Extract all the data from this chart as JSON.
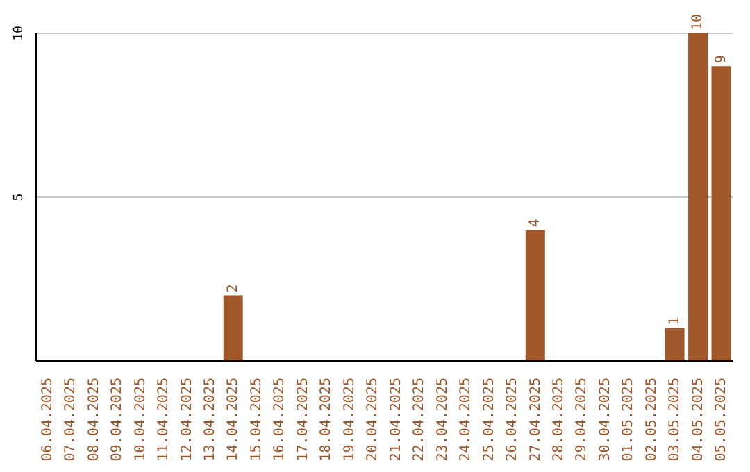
{
  "chart_data": {
    "type": "bar",
    "categories": [
      "06.04.2025",
      "07.04.2025",
      "08.04.2025",
      "09.04.2025",
      "10.04.2025",
      "11.04.2025",
      "12.04.2025",
      "13.04.2025",
      "14.04.2025",
      "15.04.2025",
      "16.04.2025",
      "17.04.2025",
      "18.04.2025",
      "19.04.2025",
      "20.04.2025",
      "21.04.2025",
      "22.04.2025",
      "23.04.2025",
      "24.04.2025",
      "25.04.2025",
      "26.04.2025",
      "27.04.2025",
      "28.04.2025",
      "29.04.2025",
      "30.04.2025",
      "01.05.2025",
      "02.05.2025",
      "03.05.2025",
      "04.05.2025",
      "05.05.2025"
    ],
    "values": [
      0,
      0,
      0,
      0,
      0,
      0,
      0,
      0,
      2,
      0,
      0,
      0,
      0,
      0,
      0,
      0,
      0,
      0,
      0,
      0,
      0,
      4,
      0,
      0,
      0,
      0,
      0,
      1,
      10,
      9
    ],
    "color": "#a0582a",
    "value_labels": [
      null,
      null,
      null,
      null,
      null,
      null,
      null,
      null,
      "2",
      null,
      null,
      null,
      null,
      null,
      null,
      null,
      null,
      null,
      null,
      null,
      null,
      "4",
      null,
      null,
      null,
      null,
      null,
      "1",
      "10",
      "9"
    ],
    "ylim": [
      0,
      10
    ],
    "yticks": [
      5,
      10
    ],
    "grid": "y"
  }
}
